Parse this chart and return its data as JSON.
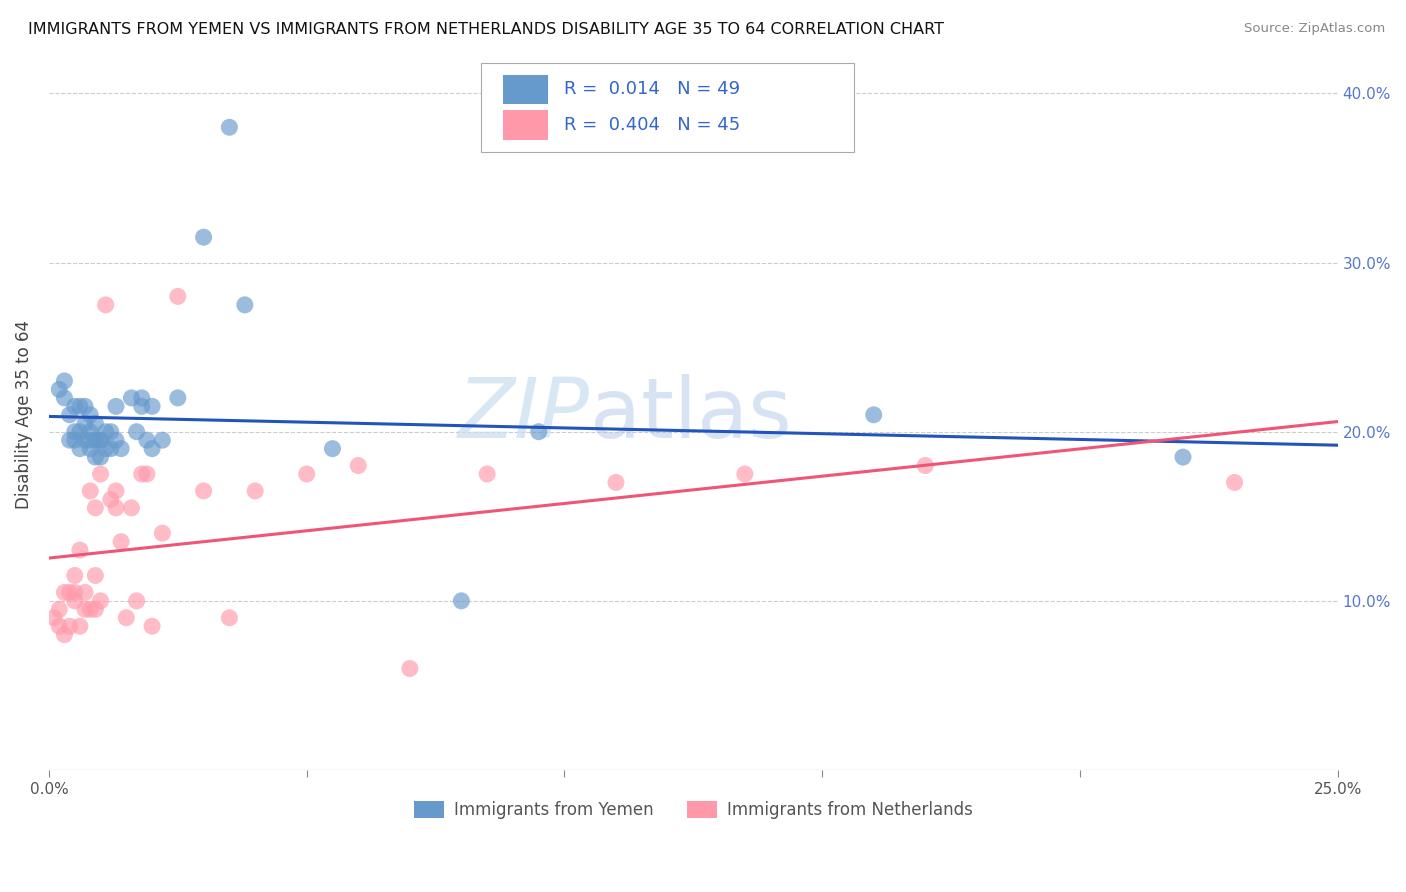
{
  "title": "IMMIGRANTS FROM YEMEN VS IMMIGRANTS FROM NETHERLANDS DISABILITY AGE 35 TO 64 CORRELATION CHART",
  "source": "Source: ZipAtlas.com",
  "ylabel": "Disability Age 35 to 64",
  "xlim": [
    0.0,
    0.25
  ],
  "ylim": [
    0.0,
    0.42
  ],
  "yticks": [
    0.0,
    0.1,
    0.2,
    0.3,
    0.4
  ],
  "xticks": [
    0.0,
    0.05,
    0.1,
    0.15,
    0.2,
    0.25
  ],
  "blue_color": "#6699CC",
  "pink_color": "#FF99AA",
  "blue_line_color": "#2255BB",
  "pink_line_color": "#EE5577",
  "legend_label_blue": "Immigrants from Yemen",
  "legend_label_pink": "Immigrants from Netherlands",
  "watermark_zip": "ZIP",
  "watermark_atlas": "atlas",
  "blue_x": [
    0.002,
    0.003,
    0.003,
    0.004,
    0.004,
    0.005,
    0.005,
    0.005,
    0.006,
    0.006,
    0.006,
    0.007,
    0.007,
    0.007,
    0.008,
    0.008,
    0.008,
    0.008,
    0.009,
    0.009,
    0.009,
    0.009,
    0.01,
    0.01,
    0.01,
    0.011,
    0.011,
    0.012,
    0.012,
    0.013,
    0.013,
    0.014,
    0.016,
    0.017,
    0.018,
    0.018,
    0.019,
    0.02,
    0.02,
    0.022,
    0.025,
    0.03,
    0.035,
    0.038,
    0.055,
    0.08,
    0.095,
    0.16,
    0.22
  ],
  "blue_y": [
    0.225,
    0.22,
    0.23,
    0.195,
    0.21,
    0.195,
    0.2,
    0.215,
    0.19,
    0.2,
    0.215,
    0.195,
    0.205,
    0.215,
    0.19,
    0.195,
    0.2,
    0.21,
    0.185,
    0.195,
    0.195,
    0.205,
    0.185,
    0.195,
    0.195,
    0.19,
    0.2,
    0.19,
    0.2,
    0.195,
    0.215,
    0.19,
    0.22,
    0.2,
    0.215,
    0.22,
    0.195,
    0.19,
    0.215,
    0.195,
    0.22,
    0.315,
    0.38,
    0.275,
    0.19,
    0.1,
    0.2,
    0.21,
    0.185
  ],
  "pink_x": [
    0.001,
    0.002,
    0.002,
    0.003,
    0.003,
    0.004,
    0.004,
    0.005,
    0.005,
    0.005,
    0.006,
    0.006,
    0.007,
    0.007,
    0.008,
    0.008,
    0.009,
    0.009,
    0.009,
    0.01,
    0.01,
    0.011,
    0.012,
    0.013,
    0.013,
    0.014,
    0.015,
    0.016,
    0.017,
    0.018,
    0.019,
    0.02,
    0.022,
    0.025,
    0.03,
    0.035,
    0.04,
    0.05,
    0.06,
    0.07,
    0.085,
    0.11,
    0.135,
    0.17,
    0.23
  ],
  "pink_y": [
    0.09,
    0.085,
    0.095,
    0.08,
    0.105,
    0.085,
    0.105,
    0.1,
    0.105,
    0.115,
    0.085,
    0.13,
    0.095,
    0.105,
    0.095,
    0.165,
    0.095,
    0.115,
    0.155,
    0.1,
    0.175,
    0.275,
    0.16,
    0.155,
    0.165,
    0.135,
    0.09,
    0.155,
    0.1,
    0.175,
    0.175,
    0.085,
    0.14,
    0.28,
    0.165,
    0.09,
    0.165,
    0.175,
    0.18,
    0.06,
    0.175,
    0.17,
    0.175,
    0.18,
    0.17
  ]
}
